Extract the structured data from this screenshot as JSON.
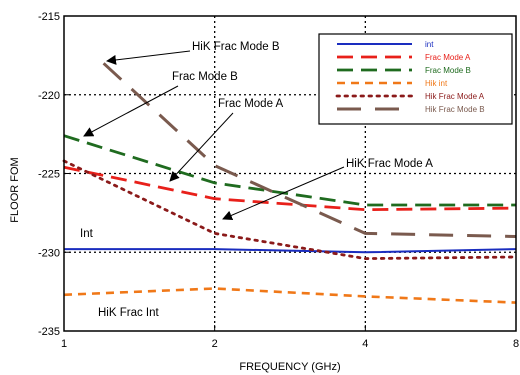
{
  "chart_data": {
    "type": "line",
    "xlabel": "FREQUENCY (GHz)",
    "ylabel": "FLOOR FOM",
    "x_scale": "log2",
    "xlim": [
      1,
      8
    ],
    "ylim": [
      -235,
      -215
    ],
    "x_ticks": [
      1,
      2,
      4,
      8
    ],
    "x_tick_labels": [
      "1",
      "2",
      "4",
      "8"
    ],
    "y_ticks": [
      -235,
      -230,
      -225,
      -220,
      -215
    ],
    "y_tick_labels": [
      "-235",
      "-230",
      "-225",
      "-220",
      "-215"
    ],
    "grid": "dotted",
    "legend_position": "top-right",
    "series": [
      {
        "name": "int",
        "color": "#1a2dbf",
        "dash": "solid",
        "x": [
          1,
          2,
          4,
          8
        ],
        "y": [
          -229.8,
          -229.8,
          -230.0,
          -229.8
        ]
      },
      {
        "name": "Frac Mode A",
        "color": "#e8201a",
        "dash": "long",
        "x": [
          1,
          2,
          4,
          8
        ],
        "y": [
          -224.6,
          -226.6,
          -227.3,
          -227.2
        ]
      },
      {
        "name": "Frac Mode B",
        "color": "#1f6b1f",
        "dash": "long",
        "x": [
          1,
          2,
          4,
          8
        ],
        "y": [
          -222.6,
          -225.6,
          -227.0,
          -227.0
        ]
      },
      {
        "name": "Hik int",
        "color": "#f07818",
        "dash": "medium",
        "x": [
          1,
          2,
          4,
          8
        ],
        "y": [
          -232.7,
          -232.3,
          -232.8,
          -233.2
        ]
      },
      {
        "name": "Hik Frac Mode A",
        "color": "#8b1a1a",
        "dash": "dot",
        "x": [
          1,
          2,
          4,
          8
        ],
        "y": [
          -224.2,
          -228.8,
          -230.4,
          -230.3
        ]
      },
      {
        "name": "Hik Frac Mode B",
        "color": "#7a5a4e",
        "dash": "xlong",
        "x": [
          1.2,
          2,
          4,
          8
        ],
        "y": [
          -218.0,
          -224.5,
          -228.8,
          -229.0
        ]
      }
    ],
    "annotations": [
      {
        "id": "hik-frac-mode-b",
        "text": "HiK Frac Mode B"
      },
      {
        "id": "frac-mode-b",
        "text": "Frac Mode B"
      },
      {
        "id": "frac-mode-a",
        "text": "Frac Mode A"
      },
      {
        "id": "hik-frac-mode-a",
        "text": "HiK Frac Mode A"
      },
      {
        "id": "int",
        "text": "Int"
      },
      {
        "id": "hik-frac-int",
        "text": "HiK Frac Int"
      }
    ]
  }
}
